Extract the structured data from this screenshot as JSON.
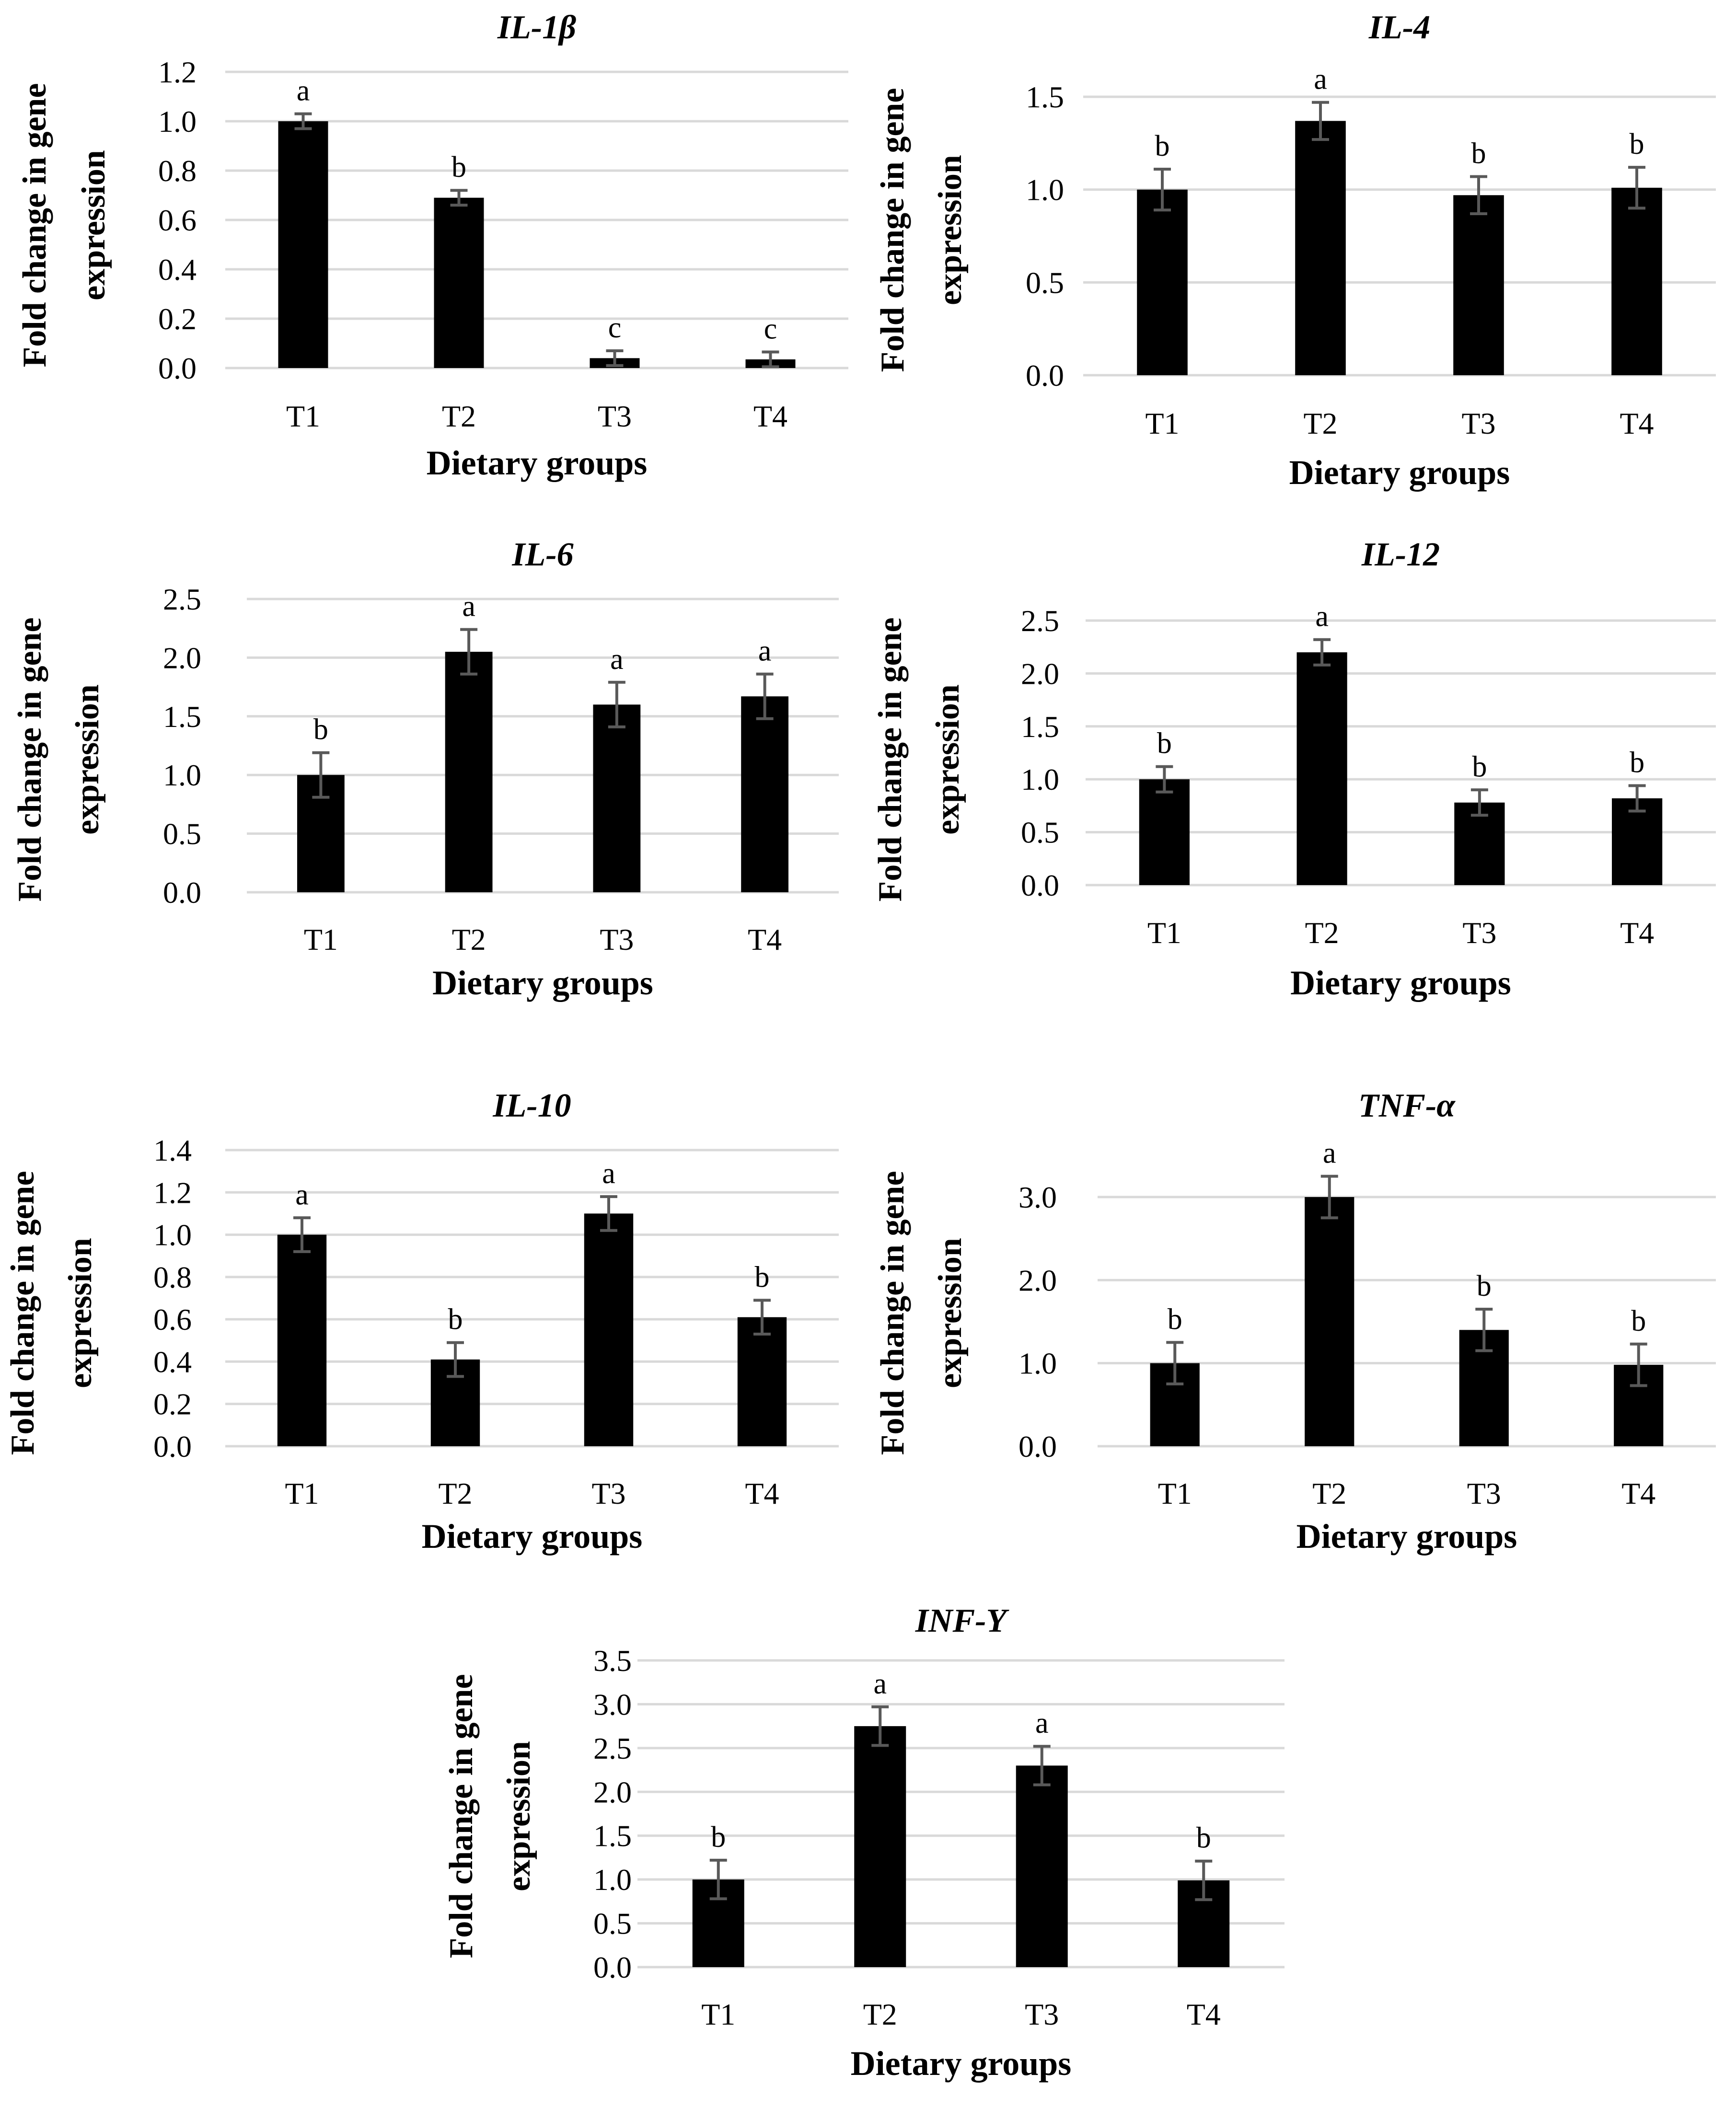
{
  "chart_data": [
    {
      "type": "bar",
      "title": "IL-1β",
      "xlabel": "Dietary groups",
      "ylabel": [
        "Fold change in gene",
        "expression"
      ],
      "categories": [
        "T1",
        "T2",
        "T3",
        "T4"
      ],
      "values": [
        1.0,
        0.69,
        0.04,
        0.035
      ],
      "errors": [
        0.03,
        0.03,
        0.03,
        0.03
      ],
      "significance": [
        "a",
        "b",
        "c",
        "c"
      ],
      "ylim": [
        0,
        1.2
      ],
      "ytick_step": 0.2,
      "ytick_labels": [
        "0.0",
        "0.2",
        "0.4",
        "0.6",
        "0.8",
        "1.0",
        "1.2"
      ],
      "grid": true
    },
    {
      "type": "bar",
      "title": "IL-4",
      "xlabel": "Dietary groups",
      "ylabel": [
        "Fold change in gene",
        "expression"
      ],
      "categories": [
        "T1",
        "T2",
        "T3",
        "T4"
      ],
      "values": [
        1.0,
        1.37,
        0.97,
        1.01
      ],
      "errors": [
        0.11,
        0.1,
        0.1,
        0.11
      ],
      "significance": [
        "b",
        "a",
        "b",
        "b"
      ],
      "ylim": [
        0,
        1.5
      ],
      "ytick_step": 0.5,
      "ytick_labels": [
        "0.0",
        "0.5",
        "1.0",
        "1.5"
      ],
      "grid": true
    },
    {
      "type": "bar",
      "title": "IL-6",
      "xlabel": "Dietary groups",
      "ylabel": [
        "Fold change in gene",
        "expression"
      ],
      "categories": [
        "T1",
        "T2",
        "T3",
        "T4"
      ],
      "values": [
        1.0,
        2.05,
        1.6,
        1.67
      ],
      "errors": [
        0.19,
        0.19,
        0.19,
        0.19
      ],
      "significance": [
        "b",
        "a",
        "a",
        "a"
      ],
      "ylim": [
        0,
        2.5
      ],
      "ytick_step": 0.5,
      "ytick_labels": [
        "0.0",
        "0.5",
        "1.0",
        "1.5",
        "2.0",
        "2.5"
      ],
      "grid": true
    },
    {
      "type": "bar",
      "title": "IL-12",
      "xlabel": "Dietary groups",
      "ylabel": [
        "Fold change in gene",
        "expression"
      ],
      "categories": [
        "T1",
        "T2",
        "T3",
        "T4"
      ],
      "values": [
        1.0,
        2.2,
        0.78,
        0.82
      ],
      "errors": [
        0.12,
        0.12,
        0.12,
        0.12
      ],
      "significance": [
        "b",
        "a",
        "b",
        "b"
      ],
      "ylim": [
        0,
        2.5
      ],
      "ytick_step": 0.5,
      "ytick_labels": [
        "0.0",
        "0.5",
        "1.0",
        "1.5",
        "2.0",
        "2.5"
      ],
      "grid": true
    },
    {
      "type": "bar",
      "title": "IL-10",
      "xlabel": "Dietary groups",
      "ylabel": [
        "Fold change in gene",
        "expression"
      ],
      "categories": [
        "T1",
        "T2",
        "T3",
        "T4"
      ],
      "values": [
        1.0,
        0.41,
        1.1,
        0.61
      ],
      "errors": [
        0.08,
        0.08,
        0.08,
        0.08
      ],
      "significance": [
        "a",
        "b",
        "a",
        "b"
      ],
      "ylim": [
        0,
        1.4
      ],
      "ytick_step": 0.2,
      "ytick_labels": [
        "0.0",
        "0.2",
        "0.4",
        "0.6",
        "0.8",
        "1.0",
        "1.2",
        "1.4"
      ],
      "grid": true
    },
    {
      "type": "bar",
      "title": "TNF-α",
      "xlabel": "Dietary groups",
      "ylabel": [
        "Fold change in gene",
        "expression"
      ],
      "categories": [
        "T1",
        "T2",
        "T3",
        "T4"
      ],
      "values": [
        1.0,
        3.0,
        1.4,
        0.98
      ],
      "errors": [
        0.25,
        0.25,
        0.25,
        0.25
      ],
      "significance": [
        "b",
        "a",
        "b",
        "b"
      ],
      "ylim": [
        0,
        3.0
      ],
      "ytick_step": 1.0,
      "ytick_labels": [
        "0.0",
        "1.0",
        "2.0",
        "3.0"
      ],
      "grid": true
    },
    {
      "type": "bar",
      "title": "INF-Y",
      "xlabel": "Dietary groups",
      "ylabel": [
        "Fold change in gene",
        "expression"
      ],
      "categories": [
        "T1",
        "T2",
        "T3",
        "T4"
      ],
      "values": [
        1.0,
        2.75,
        2.3,
        0.99
      ],
      "errors": [
        0.22,
        0.22,
        0.22,
        0.22
      ],
      "significance": [
        "b",
        "a",
        "a",
        "b"
      ],
      "ylim": [
        0,
        3.5
      ],
      "ytick_step": 0.5,
      "ytick_labels": [
        "0.0",
        "0.5",
        "1.0",
        "1.5",
        "2.0",
        "2.5",
        "3.0",
        "3.5"
      ],
      "grid": true
    }
  ]
}
